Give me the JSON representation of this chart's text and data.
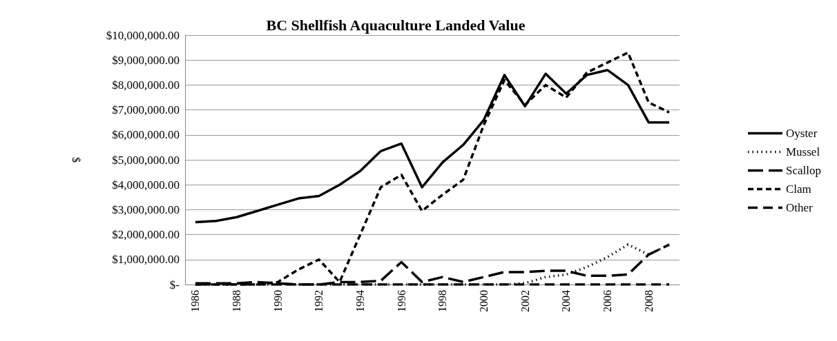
{
  "chart_data": {
    "type": "line",
    "title": "BC Shellfish Aquaculture Landed Value",
    "ylabel": "$",
    "categories": [
      "1986",
      null,
      "1988",
      null,
      "1990",
      null,
      "1992",
      null,
      "1994",
      null,
      "1996",
      null,
      "1998",
      null,
      "2000",
      null,
      "2002",
      null,
      "2004",
      null,
      "2006",
      null,
      "2008",
      null
    ],
    "series": [
      {
        "name": "Oyster",
        "color": "#000000",
        "line_style": "solid",
        "values": [
          2500000,
          2550000,
          2700000,
          2950000,
          3200000,
          3450000,
          3550000,
          4000000,
          4550000,
          5350000,
          5650000,
          3900000,
          4900000,
          5600000,
          6600000,
          8400000,
          7150000,
          8450000,
          7650000,
          8400000,
          8600000,
          8000000,
          6500000,
          6500000
        ]
      },
      {
        "name": "Mussel",
        "color": "#000000",
        "line_style": "dotted",
        "values": [
          0,
          0,
          0,
          0,
          0,
          0,
          0,
          0,
          0,
          0,
          0,
          0,
          0,
          0,
          0,
          0,
          50000,
          300000,
          400000,
          700000,
          1100000,
          1600000,
          1200000,
          1600000
        ]
      },
      {
        "name": "Scallop",
        "color": "#000000",
        "line_style": "dashed",
        "values": [
          50000,
          50000,
          50000,
          100000,
          50000,
          0,
          0,
          100000,
          100000,
          150000,
          900000,
          100000,
          300000,
          100000,
          300000,
          500000,
          500000,
          550000,
          550000,
          350000,
          350000,
          400000,
          1200000,
          1600000
        ]
      },
      {
        "name": "Clam",
        "color": "#000000",
        "line_style": "dashed",
        "values": [
          0,
          0,
          0,
          0,
          100000,
          600000,
          1000000,
          100000,
          2000000,
          3900000,
          4400000,
          2950000,
          3600000,
          4200000,
          6400000,
          8200000,
          7200000,
          8000000,
          7500000,
          8500000,
          8900000,
          9300000,
          7300000,
          6900000
        ]
      },
      {
        "name": "Other",
        "color": "#000000",
        "line_style": "dashed",
        "values": [
          0,
          0,
          0,
          0,
          0,
          0,
          0,
          0,
          0,
          0,
          0,
          0,
          0,
          0,
          0,
          0,
          0,
          0,
          0,
          0,
          0,
          0,
          0,
          0
        ]
      }
    ],
    "ylim": [
      0,
      10000000
    ],
    "yticks": [
      {
        "value": 0,
        "label": "$-"
      },
      {
        "value": 1000000,
        "label": "$1,000,000.00"
      },
      {
        "value": 2000000,
        "label": "$2,000,000.00"
      },
      {
        "value": 3000000,
        "label": "$3,000,000.00"
      },
      {
        "value": 4000000,
        "label": "$4,000,000.00"
      },
      {
        "value": 5000000,
        "label": "$5,000,000.00"
      },
      {
        "value": 6000000,
        "label": "$6,000,000.00"
      },
      {
        "value": 7000000,
        "label": "$7,000,000.00"
      },
      {
        "value": 8000000,
        "label": "$8,000,000.00"
      },
      {
        "value": 9000000,
        "label": "$9,000,000.00"
      },
      {
        "value": 10000000,
        "label": "$10,000,000.00"
      }
    ],
    "grid": "y",
    "legend": "right",
    "marker": "none"
  }
}
